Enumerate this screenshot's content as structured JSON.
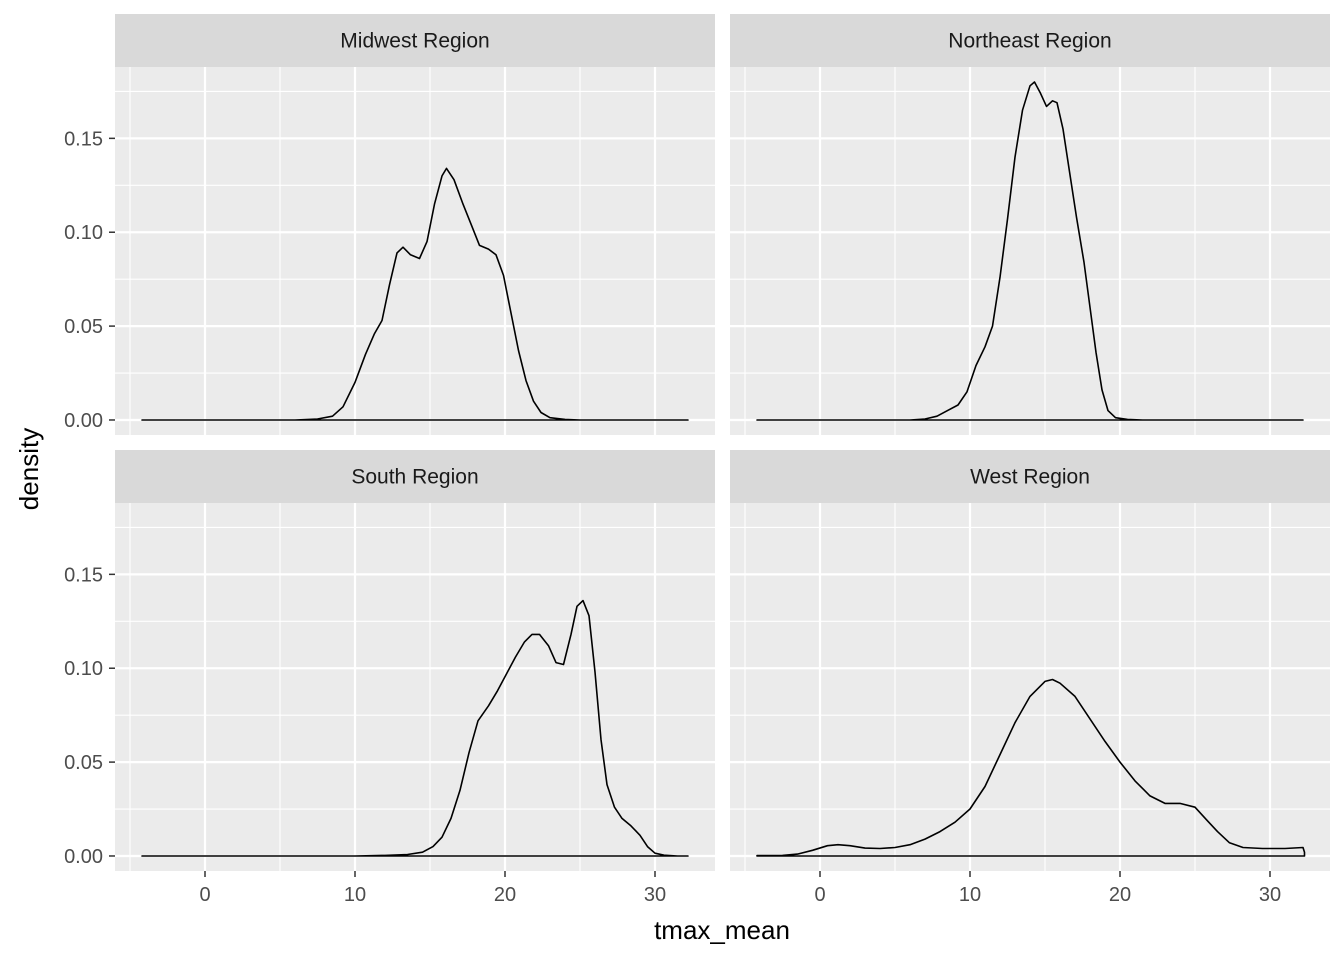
{
  "chart_data": {
    "type": "line",
    "subtype": "faceted density",
    "xlabel": "tmax_mean",
    "ylabel": "density",
    "xlim": [
      -6,
      34
    ],
    "ylim": [
      -0.008,
      0.188
    ],
    "x_ticks": [
      0,
      10,
      20,
      30
    ],
    "x_tick_labels": [
      "0",
      "10",
      "20",
      "30"
    ],
    "y_ticks": [
      0.0,
      0.05,
      0.1,
      0.15
    ],
    "y_tick_labels": [
      "0.00",
      "0.05",
      "0.10",
      "0.15"
    ],
    "grid": true,
    "colors": {
      "panel_bg": "#ebebeb",
      "strip_bg": "#d9d9d9",
      "grid": "#ffffff",
      "line": "#000000"
    },
    "facets": [
      {
        "strip": "Midwest Region",
        "points": [
          [
            -4.2,
            0
          ],
          [
            6,
            0
          ],
          [
            7.5,
            0.0005
          ],
          [
            8.5,
            0.002
          ],
          [
            9.2,
            0.007
          ],
          [
            10,
            0.02
          ],
          [
            10.7,
            0.035
          ],
          [
            11.3,
            0.046
          ],
          [
            11.8,
            0.053
          ],
          [
            12.3,
            0.072
          ],
          [
            12.8,
            0.089
          ],
          [
            13.2,
            0.092
          ],
          [
            13.7,
            0.088
          ],
          [
            14.3,
            0.086
          ],
          [
            14.8,
            0.095
          ],
          [
            15.3,
            0.115
          ],
          [
            15.8,
            0.13
          ],
          [
            16.1,
            0.134
          ],
          [
            16.6,
            0.128
          ],
          [
            17.2,
            0.115
          ],
          [
            17.8,
            0.103
          ],
          [
            18.3,
            0.093
          ],
          [
            18.9,
            0.091
          ],
          [
            19.4,
            0.088
          ],
          [
            19.9,
            0.077
          ],
          [
            20.4,
            0.057
          ],
          [
            20.9,
            0.037
          ],
          [
            21.4,
            0.021
          ],
          [
            21.9,
            0.01
          ],
          [
            22.4,
            0.004
          ],
          [
            23,
            0.0012
          ],
          [
            24,
            0.0003
          ],
          [
            25,
            0
          ],
          [
            32.2,
            0
          ]
        ]
      },
      {
        "strip": "Northeast Region",
        "points": [
          [
            -4.2,
            0
          ],
          [
            6,
            0
          ],
          [
            7,
            0.0005
          ],
          [
            7.8,
            0.002
          ],
          [
            8.5,
            0.005
          ],
          [
            9.2,
            0.008
          ],
          [
            9.8,
            0.015
          ],
          [
            10.4,
            0.029
          ],
          [
            11,
            0.039
          ],
          [
            11.5,
            0.05
          ],
          [
            12,
            0.076
          ],
          [
            12.5,
            0.107
          ],
          [
            13,
            0.14
          ],
          [
            13.5,
            0.165
          ],
          [
            14,
            0.178
          ],
          [
            14.3,
            0.18
          ],
          [
            14.7,
            0.174
          ],
          [
            15.1,
            0.167
          ],
          [
            15.5,
            0.17
          ],
          [
            15.8,
            0.169
          ],
          [
            16.2,
            0.155
          ],
          [
            16.6,
            0.134
          ],
          [
            17.1,
            0.108
          ],
          [
            17.6,
            0.084
          ],
          [
            18,
            0.06
          ],
          [
            18.4,
            0.036
          ],
          [
            18.8,
            0.016
          ],
          [
            19.2,
            0.005
          ],
          [
            19.7,
            0.0012
          ],
          [
            20.5,
            0.0003
          ],
          [
            21.5,
            0
          ],
          [
            32.2,
            0
          ]
        ]
      },
      {
        "strip": "South Region",
        "points": [
          [
            -4.2,
            0
          ],
          [
            10,
            0
          ],
          [
            12,
            0.0003
          ],
          [
            13.5,
            0.0008
          ],
          [
            14.5,
            0.002
          ],
          [
            15.2,
            0.005
          ],
          [
            15.8,
            0.01
          ],
          [
            16.4,
            0.02
          ],
          [
            17,
            0.035
          ],
          [
            17.6,
            0.055
          ],
          [
            18.2,
            0.072
          ],
          [
            18.9,
            0.08
          ],
          [
            19.5,
            0.088
          ],
          [
            20.1,
            0.097
          ],
          [
            20.7,
            0.106
          ],
          [
            21.3,
            0.114
          ],
          [
            21.8,
            0.118
          ],
          [
            22.3,
            0.118
          ],
          [
            22.9,
            0.112
          ],
          [
            23.4,
            0.103
          ],
          [
            23.9,
            0.102
          ],
          [
            24.4,
            0.118
          ],
          [
            24.8,
            0.133
          ],
          [
            25.2,
            0.136
          ],
          [
            25.6,
            0.128
          ],
          [
            26,
            0.098
          ],
          [
            26.4,
            0.062
          ],
          [
            26.8,
            0.038
          ],
          [
            27.3,
            0.026
          ],
          [
            27.8,
            0.02
          ],
          [
            28.4,
            0.016
          ],
          [
            29,
            0.011
          ],
          [
            29.5,
            0.005
          ],
          [
            30,
            0.0015
          ],
          [
            30.6,
            0.0004
          ],
          [
            31.5,
            0
          ],
          [
            32.2,
            0
          ]
        ]
      },
      {
        "strip": "West Region",
        "points": [
          [
            -4.2,
            0.0002
          ],
          [
            -2.5,
            0.0003
          ],
          [
            -1.5,
            0.001
          ],
          [
            -0.5,
            0.003
          ],
          [
            0.5,
            0.0055
          ],
          [
            1.2,
            0.006
          ],
          [
            2,
            0.0055
          ],
          [
            3,
            0.0042
          ],
          [
            4,
            0.004
          ],
          [
            5,
            0.0045
          ],
          [
            6,
            0.006
          ],
          [
            7,
            0.009
          ],
          [
            8,
            0.013
          ],
          [
            9,
            0.018
          ],
          [
            10,
            0.025
          ],
          [
            11,
            0.037
          ],
          [
            12,
            0.054
          ],
          [
            13,
            0.071
          ],
          [
            14,
            0.085
          ],
          [
            15,
            0.093
          ],
          [
            15.5,
            0.094
          ],
          [
            16,
            0.092
          ],
          [
            17,
            0.085
          ],
          [
            18,
            0.073
          ],
          [
            19,
            0.061
          ],
          [
            20,
            0.05
          ],
          [
            21,
            0.04
          ],
          [
            22,
            0.032
          ],
          [
            23,
            0.028
          ],
          [
            24,
            0.028
          ],
          [
            25,
            0.026
          ],
          [
            25.8,
            0.019
          ],
          [
            26.5,
            0.013
          ],
          [
            27.3,
            0.007
          ],
          [
            28.2,
            0.0045
          ],
          [
            29.5,
            0.004
          ],
          [
            31,
            0.004
          ],
          [
            32.2,
            0.0045
          ],
          [
            32.3,
            0.002
          ]
        ]
      }
    ]
  }
}
